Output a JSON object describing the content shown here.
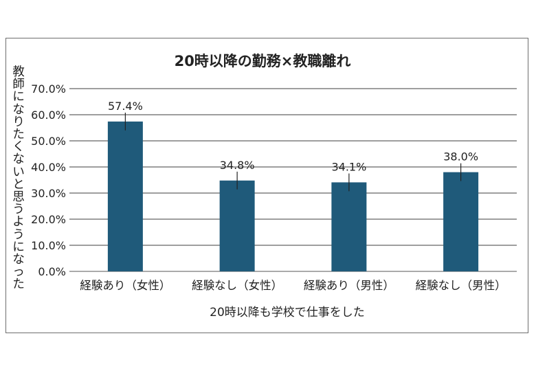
{
  "chart_data": {
    "type": "bar",
    "title": "20時以降の勤務×教職離れ",
    "xlabel": "20時以降も学校で仕事をした",
    "ylabel": "教師になりたくないと思うようになった",
    "categories": [
      "経験あり（女性）",
      "経験なし（女性）",
      "経験あり（男性）",
      "経験なし（男性）"
    ],
    "series": [
      {
        "values": [
          57.4,
          34.8,
          34.1,
          38.0
        ]
      }
    ],
    "data_labels": [
      "57.4%",
      "34.8%",
      "34.1%",
      "38.0%"
    ],
    "error_bars": [
      3.4,
      3.4,
      3.4,
      3.4
    ],
    "ylim": [
      0,
      70
    ],
    "yticks": [
      0,
      10,
      20,
      30,
      40,
      50,
      60,
      70
    ],
    "ytick_labels": [
      "0.0%",
      "10.0%",
      "20.0%",
      "30.0%",
      "40.0%",
      "50.0%",
      "60.0%",
      "70.0%"
    ],
    "grid": true,
    "legend": "none",
    "colors": {
      "bar": "#1f5a7a",
      "grid": "#3c3c3c",
      "axis": "#555555",
      "text": "#222222"
    }
  }
}
